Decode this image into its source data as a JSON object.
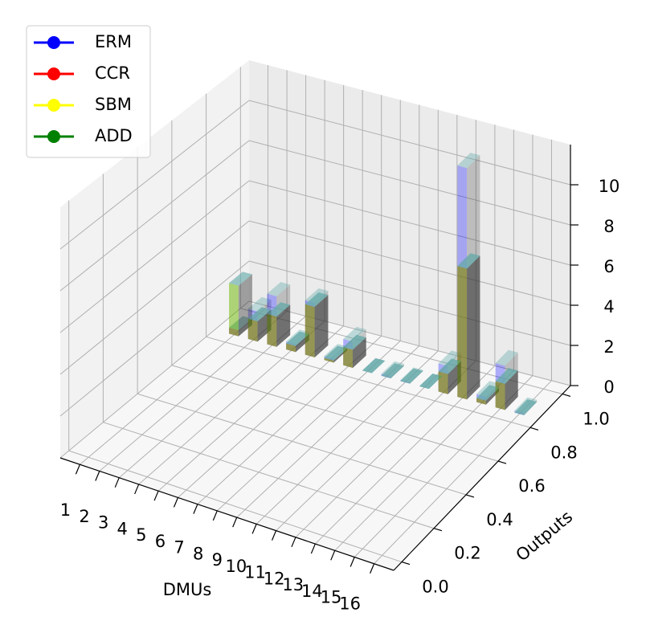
{
  "chart_data": {
    "type": "bar3d",
    "x_label": "DMUs",
    "y_label": "Outputs",
    "categories": [
      "1",
      "2",
      "3",
      "4",
      "5",
      "6",
      "7",
      "8",
      "9",
      "10",
      "11",
      "12",
      "13",
      "14",
      "15",
      "16"
    ],
    "series": [
      {
        "name": "ERM",
        "color": "#0000ff",
        "values": [
          0.3,
          1.5,
          2.5,
          0.4,
          2.7,
          0.2,
          1.3,
          0,
          0.1,
          0.05,
          0,
          1.4,
          11.5,
          0.4,
          2.2,
          0.1
        ]
      },
      {
        "name": "CCR",
        "color": "#ff0000",
        "values": [
          0.3,
          1.0,
          1.5,
          0.3,
          2.5,
          0.1,
          0.9,
          0,
          0,
          0,
          0,
          1.0,
          6.5,
          0.2,
          1.3,
          0
        ]
      },
      {
        "name": "SBM",
        "color": "#ffff00",
        "values": [
          2.5,
          1.0,
          1.5,
          0.3,
          2.5,
          0.1,
          0.9,
          0,
          0,
          0,
          0,
          1.0,
          6.5,
          0.2,
          1.3,
          0
        ]
      },
      {
        "name": "ADD",
        "color": "#008000",
        "values": [
          2.5,
          1.0,
          1.5,
          0.3,
          2.5,
          0.1,
          0.9,
          0,
          0,
          0,
          0,
          1.0,
          6.5,
          0.2,
          1.3,
          0
        ]
      }
    ],
    "xlim": [
      0,
      17
    ],
    "xticks": [
      1,
      2,
      3,
      4,
      5,
      6,
      7,
      8,
      9,
      10,
      11,
      12,
      13,
      14,
      15,
      16
    ],
    "ylim": [
      -0.05,
      1.05
    ],
    "yticks": [
      {
        "value": 0,
        "label": "0.0"
      },
      {
        "value": 0.2,
        "label": "0.2"
      },
      {
        "value": 0.4,
        "label": "0.4"
      },
      {
        "value": 0.6,
        "label": "0.6"
      },
      {
        "value": 0.8,
        "label": "0.8"
      },
      {
        "value": 1,
        "label": "1.0"
      }
    ],
    "zlim": [
      0,
      12
    ],
    "zticks": [
      0,
      2,
      4,
      6,
      8,
      10
    ],
    "grid": true,
    "legend": "upper left"
  }
}
